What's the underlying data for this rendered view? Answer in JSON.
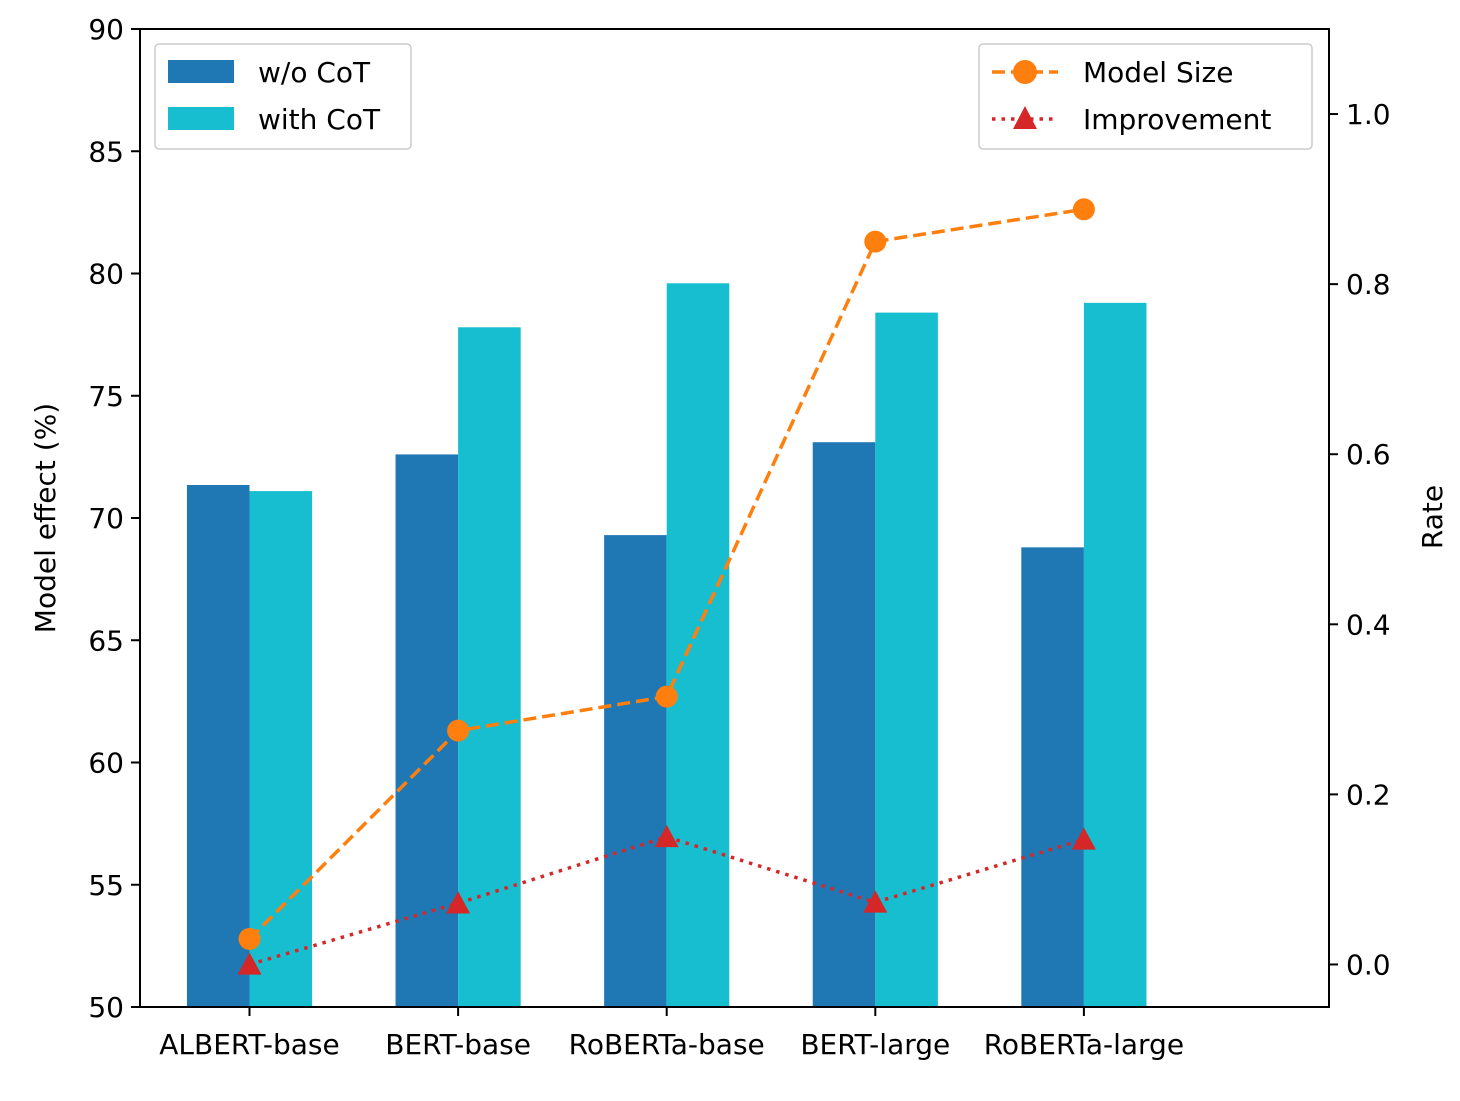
{
  "chart_data": {
    "type": "bar+line (dual axis)",
    "categories": [
      "ALBERT-base",
      "BERT-base",
      "RoBERTa-base",
      "BERT-large",
      "RoBERTa-large"
    ],
    "bar_series": [
      {
        "name": "w/o CoT",
        "color": "#1f77b4",
        "values": [
          71.35,
          72.6,
          69.3,
          73.1,
          68.8
        ]
      },
      {
        "name": "with CoT",
        "color": "#17becf",
        "values": [
          71.1,
          77.8,
          79.6,
          78.4,
          78.8
        ]
      }
    ],
    "line_series": [
      {
        "name": "Model Size",
        "color": "#ff7f0e",
        "marker": "circle",
        "style": "dashed",
        "values": [
          0.03,
          0.275,
          0.315,
          0.85,
          0.888
        ]
      },
      {
        "name": "Improvement",
        "color": "#d62728",
        "marker": "triangle",
        "style": "dotted",
        "values": [
          0.0,
          0.072,
          0.15,
          0.073,
          0.147
        ]
      }
    ],
    "left_axis": {
      "label": "Model effect (%)",
      "ylim": [
        50,
        90
      ],
      "ticks": [
        "50",
        "55",
        "60",
        "65",
        "70",
        "75",
        "80",
        "85",
        "90"
      ]
    },
    "right_axis": {
      "label": "Rate",
      "ylim": [
        -0.05,
        1.1
      ],
      "ticks": [
        "0.0",
        "0.2",
        "0.4",
        "0.6",
        "0.8",
        "1.0"
      ]
    },
    "legend_left": {
      "position": "top-left",
      "entries": [
        "w/o CoT",
        "with CoT"
      ]
    },
    "legend_right": {
      "position": "top-right",
      "entries": [
        "Model Size",
        "Improvement"
      ]
    },
    "grid": false
  }
}
